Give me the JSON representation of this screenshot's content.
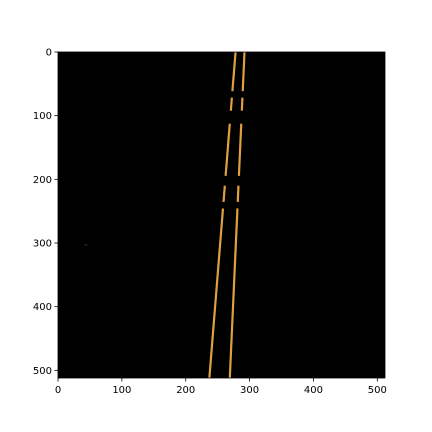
{
  "chart_data": {
    "type": "image",
    "xlim": [
      0,
      512
    ],
    "ylim": [
      512,
      0
    ],
    "x_ticks": [
      0,
      100,
      200,
      300,
      400,
      500
    ],
    "y_ticks": [
      0,
      100,
      200,
      300,
      400,
      500
    ],
    "x_tick_labels": [
      "0",
      "100",
      "200",
      "300",
      "400",
      "500"
    ],
    "y_tick_labels": [
      "0",
      "100",
      "200",
      "300",
      "400",
      "500"
    ],
    "background_color": "#000000",
    "line_color": "#e0a040",
    "grid": false,
    "lines": [
      {
        "points": [
          [
            278,
            0
          ],
          [
            237,
            512
          ]
        ],
        "gaps": [
          [
            0.12,
            0.14
          ],
          [
            0.18,
            0.22
          ],
          [
            0.38,
            0.41
          ],
          [
            0.46,
            0.48
          ]
        ]
      },
      {
        "points": [
          [
            292,
            0
          ],
          [
            269,
            512
          ]
        ],
        "gaps": [
          [
            0.12,
            0.14
          ],
          [
            0.18,
            0.22
          ],
          [
            0.38,
            0.41
          ],
          [
            0.46,
            0.48
          ]
        ]
      }
    ],
    "specks": [
      [
        43,
        303
      ]
    ]
  }
}
